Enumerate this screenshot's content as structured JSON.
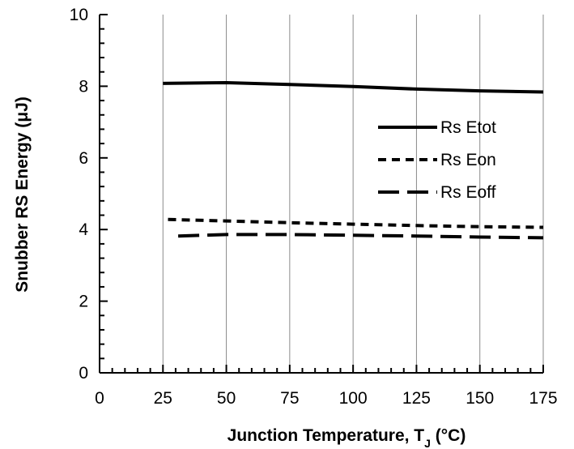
{
  "chart_data": {
    "type": "line",
    "xlabel": "Junction Temperature, T",
    "xlabel_sub": "J",
    "xlabel_unit": " (°C)",
    "ylabel": "Snubber RS Energy (μJ)",
    "xlim": [
      0,
      175
    ],
    "ylim": [
      0,
      10
    ],
    "x_ticks": [
      0,
      25,
      50,
      75,
      100,
      125,
      150,
      175
    ],
    "y_ticks": [
      0,
      2,
      4,
      6,
      8,
      10
    ],
    "grid": "vertical",
    "legend_position": "right-middle",
    "series": [
      {
        "name": "Rs Etot",
        "style": "solid",
        "x": [
          25,
          50,
          75,
          100,
          125,
          150,
          175
        ],
        "y": [
          8.08,
          8.1,
          8.05,
          7.99,
          7.92,
          7.87,
          7.84
        ]
      },
      {
        "name": "Rs Eon",
        "style": "short-dash",
        "x": [
          27,
          50,
          75,
          100,
          125,
          150,
          175
        ],
        "y": [
          4.28,
          4.24,
          4.19,
          4.15,
          4.11,
          4.08,
          4.06
        ]
      },
      {
        "name": "Rs Eoff",
        "style": "long-dash",
        "x": [
          31,
          50,
          75,
          100,
          125,
          150,
          175
        ],
        "y": [
          3.82,
          3.86,
          3.86,
          3.84,
          3.82,
          3.79,
          3.77
        ]
      }
    ]
  }
}
